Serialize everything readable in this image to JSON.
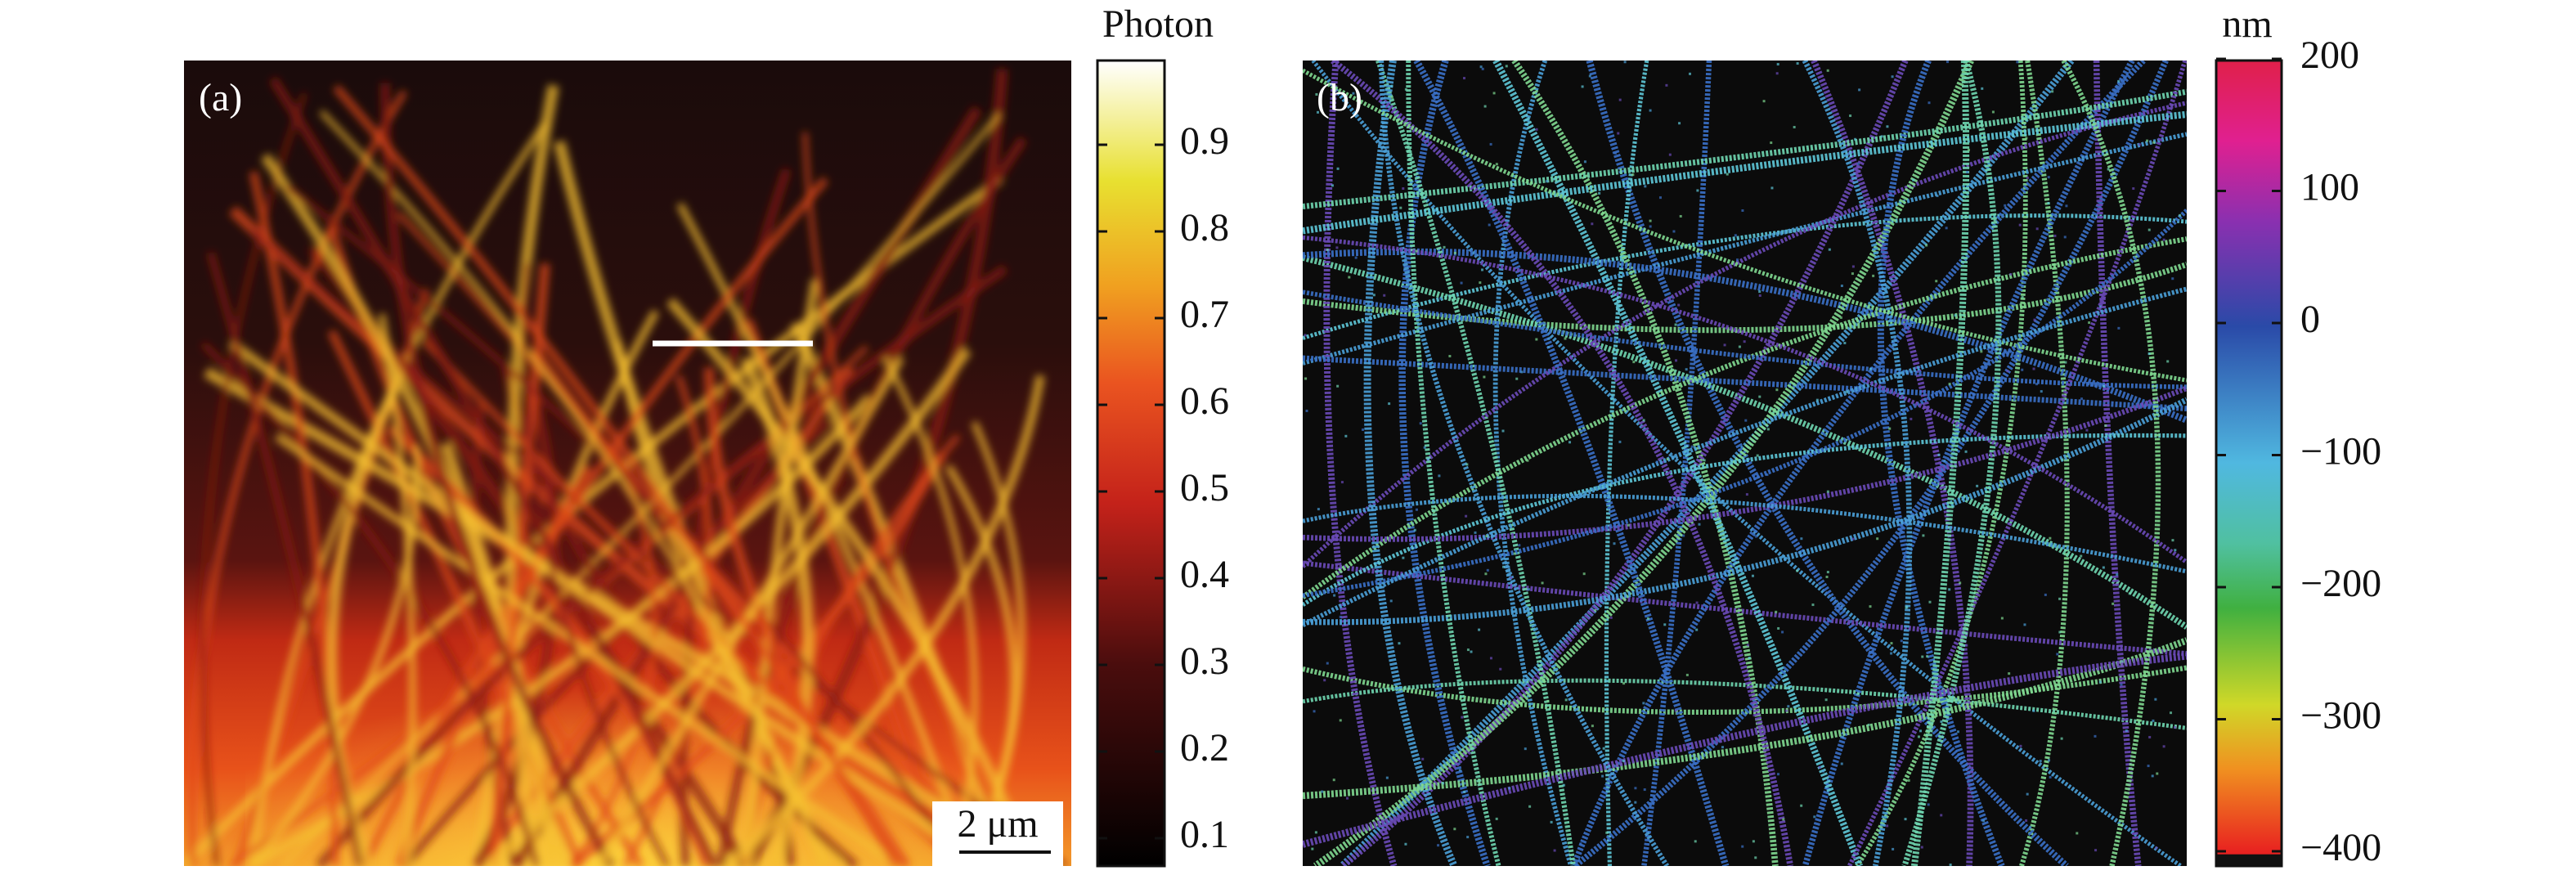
{
  "panel_a": {
    "label": "(a)",
    "scale_bar": "2 μm"
  },
  "colorbar_a": {
    "title": "Photon",
    "ticks": [
      "0.9",
      "0.8",
      "0.7",
      "0.6",
      "0.5",
      "0.4",
      "0.3",
      "0.2",
      "0.1"
    ]
  },
  "panel_b": {
    "label": "(b)"
  },
  "colorbar_b": {
    "title": "nm",
    "ticks": [
      "200",
      "100",
      "0",
      "−100",
      "−200",
      "−300",
      "−400"
    ]
  }
}
